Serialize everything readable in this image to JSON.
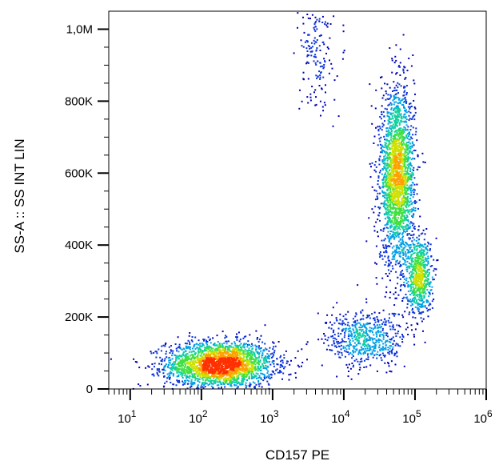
{
  "chart_data": {
    "type": "scatter",
    "title": "",
    "xlabel": "CD157 PE",
    "ylabel": "SS-A :: SS INT LIN",
    "x_scale": "log",
    "xlim": [
      5,
      1000000
    ],
    "ylim": [
      0,
      1050000
    ],
    "grid": false,
    "legend": "none",
    "x_ticks": [
      {
        "value": 10,
        "base": "10",
        "exp": "1"
      },
      {
        "value": 100,
        "base": "10",
        "exp": "2"
      },
      {
        "value": 1000,
        "base": "10",
        "exp": "3"
      },
      {
        "value": 10000,
        "base": "10",
        "exp": "4"
      },
      {
        "value": 100000,
        "base": "10",
        "exp": "5"
      },
      {
        "value": 1000000,
        "base": "10",
        "exp": "6"
      }
    ],
    "y_ticks": [
      {
        "value": 0,
        "label": "0"
      },
      {
        "value": 200000,
        "label": "200K"
      },
      {
        "value": 400000,
        "label": "400K"
      },
      {
        "value": 600000,
        "label": "600K"
      },
      {
        "value": 800000,
        "label": "800K"
      },
      {
        "value": 1000000,
        "label": "1,0M"
      }
    ],
    "density_colors": [
      "#0000b4",
      "#0a30d8",
      "#00a0e6",
      "#10d0a0",
      "#40e040",
      "#d0e000",
      "#ffa000",
      "#ff3000"
    ],
    "populations": [
      {
        "center_x": 180,
        "center_y": 70000,
        "spread_x_log10": 0.38,
        "spread_y": 32000,
        "count": 2600
      },
      {
        "center_x": 55000,
        "center_y": 590000,
        "spread_x_log10": 0.12,
        "spread_y": 120000,
        "count": 2300
      },
      {
        "center_x": 110000,
        "center_y": 320000,
        "spread_x_log10": 0.09,
        "spread_y": 55000,
        "count": 700
      },
      {
        "center_x": 20000,
        "center_y": 140000,
        "spread_x_log10": 0.28,
        "spread_y": 40000,
        "count": 600
      },
      {
        "center_x": 4000,
        "center_y": 950000,
        "spread_x_log10": 0.12,
        "spread_y": 90000,
        "count": 180
      }
    ]
  }
}
